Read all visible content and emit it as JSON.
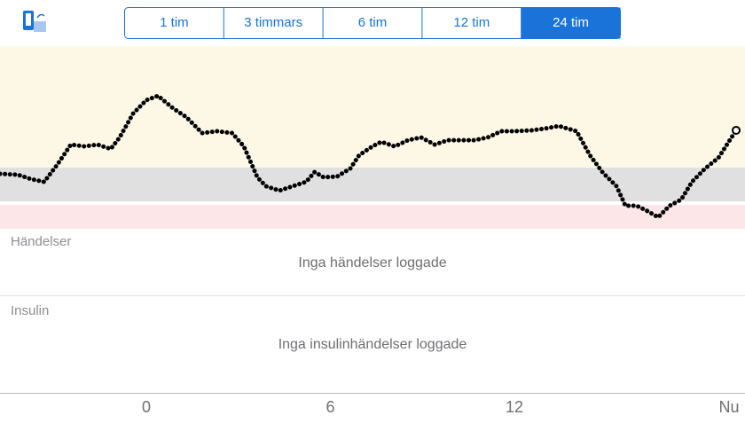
{
  "header": {
    "ranges": [
      "1 tim",
      "3 timmars",
      "6 tim",
      "12 tim",
      "24 tim"
    ],
    "selected": 4
  },
  "chart_data": {
    "type": "line",
    "x": [
      -4.77,
      -4.19,
      -3.76,
      -3.33,
      -2.89,
      -2.46,
      -2.02,
      -1.59,
      -1.16,
      -0.87,
      -0.43,
      0,
      0.38,
      0.87,
      1.3,
      1.82,
      2.31,
      2.8,
      3.18,
      3.62,
      3.9,
      4.34,
      4.77,
      5.21,
      5.49,
      5.78,
      6.22,
      6.65,
      6.94,
      7.37,
      7.66,
      8.1,
      8.53,
      8.96,
      9.4,
      9.83,
      10.27,
      10.7,
      11.13,
      11.57,
      12,
      12.58,
      13.01,
      13.45,
      14.03,
      14.46,
      14.89,
      15.33,
      15.62,
      15.99,
      16.34,
      16.69,
      17.06,
      17.44,
      17.79,
      18.22,
      18.65,
      19.23
    ],
    "values": [
      30.1,
      29.6,
      27.2,
      25.7,
      35.4,
      46.1,
      45.1,
      46.1,
      43.7,
      50,
      63.1,
      70.4,
      72.8,
      66,
      61.2,
      52.4,
      53.4,
      52.4,
      45.1,
      28.2,
      23.3,
      20.9,
      23.3,
      25.7,
      31.1,
      28.2,
      28.6,
      33,
      40.3,
      45.1,
      47.6,
      45.1,
      48.5,
      50,
      46.1,
      48.5,
      48.5,
      48.5,
      50,
      53.4,
      53.4,
      53.9,
      54.9,
      56.3,
      53.4,
      40.3,
      30.6,
      23.3,
      12.6,
      12.6,
      9.7,
      6.3,
      12.6,
      16,
      25.7,
      33,
      38.8,
      53.9
    ],
    "color": "#000000",
    "xlim": [
      -4.77,
      19.23
    ],
    "xticks": [
      0,
      6,
      12,
      {
        "value": 19.23,
        "label": "Nu"
      }
    ],
    "ylim": [
      0,
      100
    ],
    "bands": [
      {
        "range": [
          33.5,
          100
        ],
        "color": "#fdf7e6"
      },
      {
        "range": [
          15,
          33.5
        ],
        "color": "#e0e0e0"
      },
      {
        "range": [
          0,
          13.1
        ],
        "color": "#fde6e8"
      }
    ]
  },
  "events": {
    "title": "Händelser",
    "empty": "Inga händelser loggade"
  },
  "insulin": {
    "title": "Insulin",
    "empty": "Inga insulinhändelser loggade"
  }
}
